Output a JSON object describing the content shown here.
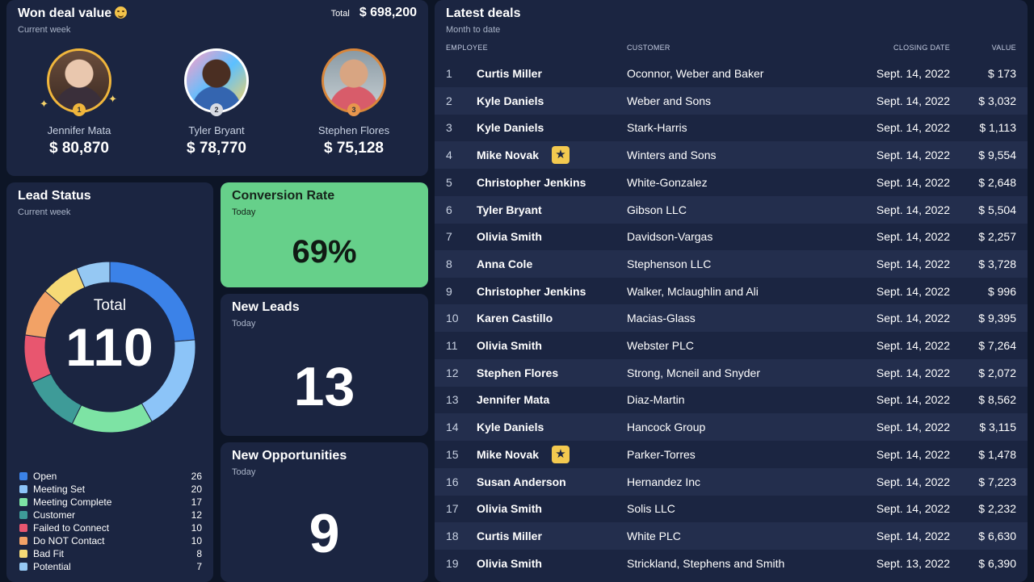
{
  "won": {
    "title": "Won deal value",
    "subtitle": "Current week",
    "total_label": "Total",
    "total_value": "$ 698,200",
    "leaders": [
      {
        "rank": "1",
        "name": "Jennifer Mata",
        "amount": "$ 80,870"
      },
      {
        "rank": "2",
        "name": "Tyler Bryant",
        "amount": "$ 78,770"
      },
      {
        "rank": "3",
        "name": "Stephen Flores",
        "amount": "$ 75,128"
      }
    ]
  },
  "lead_status": {
    "title": "Lead Status",
    "subtitle": "Current week",
    "total_label": "Total",
    "total_value": "110",
    "items": [
      {
        "label": "Open",
        "count": 26,
        "color": "#3b82e8"
      },
      {
        "label": "Meeting Set",
        "count": 20,
        "color": "#8cc4f8"
      },
      {
        "label": "Meeting Complete",
        "count": 17,
        "color": "#7de3a4"
      },
      {
        "label": "Customer",
        "count": 12,
        "color": "#3e9b98"
      },
      {
        "label": "Failed to Connect",
        "count": 10,
        "color": "#e8566f"
      },
      {
        "label": "Do NOT Contact",
        "count": 10,
        "color": "#f2a266"
      },
      {
        "label": "Bad Fit",
        "count": 8,
        "color": "#f6da76"
      },
      {
        "label": "Potential",
        "count": 7,
        "color": "#95c8f3"
      }
    ]
  },
  "conversion": {
    "title": "Conversion Rate",
    "subtitle": "Today",
    "value": "69%",
    "color": "#66d08a"
  },
  "new_leads": {
    "title": "New Leads",
    "subtitle": "Today",
    "value": "13"
  },
  "new_opps": {
    "title": "New Opportunities",
    "subtitle": "Today",
    "value": "9"
  },
  "deals": {
    "title": "Latest deals",
    "subtitle": "Month to date",
    "headers": {
      "employee": "EMPLOYEE",
      "customer": "CUSTOMER",
      "closing_date": "CLOSING DATE",
      "value": "VALUE"
    },
    "rows": [
      {
        "n": "1",
        "employee": "Curtis Miller",
        "customer": "Oconnor, Weber and Baker",
        "date": "Sept. 14, 2022",
        "value": "$ 173",
        "star": false
      },
      {
        "n": "2",
        "employee": "Kyle Daniels",
        "customer": "Weber and Sons",
        "date": "Sept. 14, 2022",
        "value": "$ 3,032",
        "star": false
      },
      {
        "n": "3",
        "employee": "Kyle Daniels",
        "customer": "Stark-Harris",
        "date": "Sept. 14, 2022",
        "value": "$ 1,113",
        "star": false
      },
      {
        "n": "4",
        "employee": "Mike Novak",
        "customer": "Winters and Sons",
        "date": "Sept. 14, 2022",
        "value": "$ 9,554",
        "star": true
      },
      {
        "n": "5",
        "employee": "Christopher Jenkins",
        "customer": "White-Gonzalez",
        "date": "Sept. 14, 2022",
        "value": "$ 2,648",
        "star": false
      },
      {
        "n": "6",
        "employee": "Tyler Bryant",
        "customer": "Gibson LLC",
        "date": "Sept. 14, 2022",
        "value": "$ 5,504",
        "star": false
      },
      {
        "n": "7",
        "employee": "Olivia Smith",
        "customer": "Davidson-Vargas",
        "date": "Sept. 14, 2022",
        "value": "$ 2,257",
        "star": false
      },
      {
        "n": "8",
        "employee": "Anna Cole",
        "customer": "Stephenson LLC",
        "date": "Sept. 14, 2022",
        "value": "$ 3,728",
        "star": false
      },
      {
        "n": "9",
        "employee": "Christopher Jenkins",
        "customer": "Walker, Mclaughlin and Ali",
        "date": "Sept. 14, 2022",
        "value": "$ 996",
        "star": false
      },
      {
        "n": "10",
        "employee": "Karen Castillo",
        "customer": "Macias-Glass",
        "date": "Sept. 14, 2022",
        "value": "$ 9,395",
        "star": false
      },
      {
        "n": "11",
        "employee": "Olivia Smith",
        "customer": "Webster PLC",
        "date": "Sept. 14, 2022",
        "value": "$ 7,264",
        "star": false
      },
      {
        "n": "12",
        "employee": "Stephen Flores",
        "customer": "Strong, Mcneil and Snyder",
        "date": "Sept. 14, 2022",
        "value": "$ 2,072",
        "star": false
      },
      {
        "n": "13",
        "employee": "Jennifer Mata",
        "customer": "Diaz-Martin",
        "date": "Sept. 14, 2022",
        "value": "$ 8,562",
        "star": false
      },
      {
        "n": "14",
        "employee": "Kyle Daniels",
        "customer": "Hancock Group",
        "date": "Sept. 14, 2022",
        "value": "$ 3,115",
        "star": false
      },
      {
        "n": "15",
        "employee": "Mike Novak",
        "customer": "Parker-Torres",
        "date": "Sept. 14, 2022",
        "value": "$ 1,478",
        "star": true
      },
      {
        "n": "16",
        "employee": "Susan Anderson",
        "customer": "Hernandez Inc",
        "date": "Sept. 14, 2022",
        "value": "$ 7,223",
        "star": false
      },
      {
        "n": "17",
        "employee": "Olivia Smith",
        "customer": "Solis LLC",
        "date": "Sept. 14, 2022",
        "value": "$ 2,232",
        "star": false
      },
      {
        "n": "18",
        "employee": "Curtis Miller",
        "customer": "White PLC",
        "date": "Sept. 14, 2022",
        "value": "$ 6,630",
        "star": false
      },
      {
        "n": "19",
        "employee": "Olivia Smith",
        "customer": "Strickland, Stephens and Smith",
        "date": "Sept. 13, 2022",
        "value": "$ 6,390",
        "star": false
      }
    ]
  }
}
